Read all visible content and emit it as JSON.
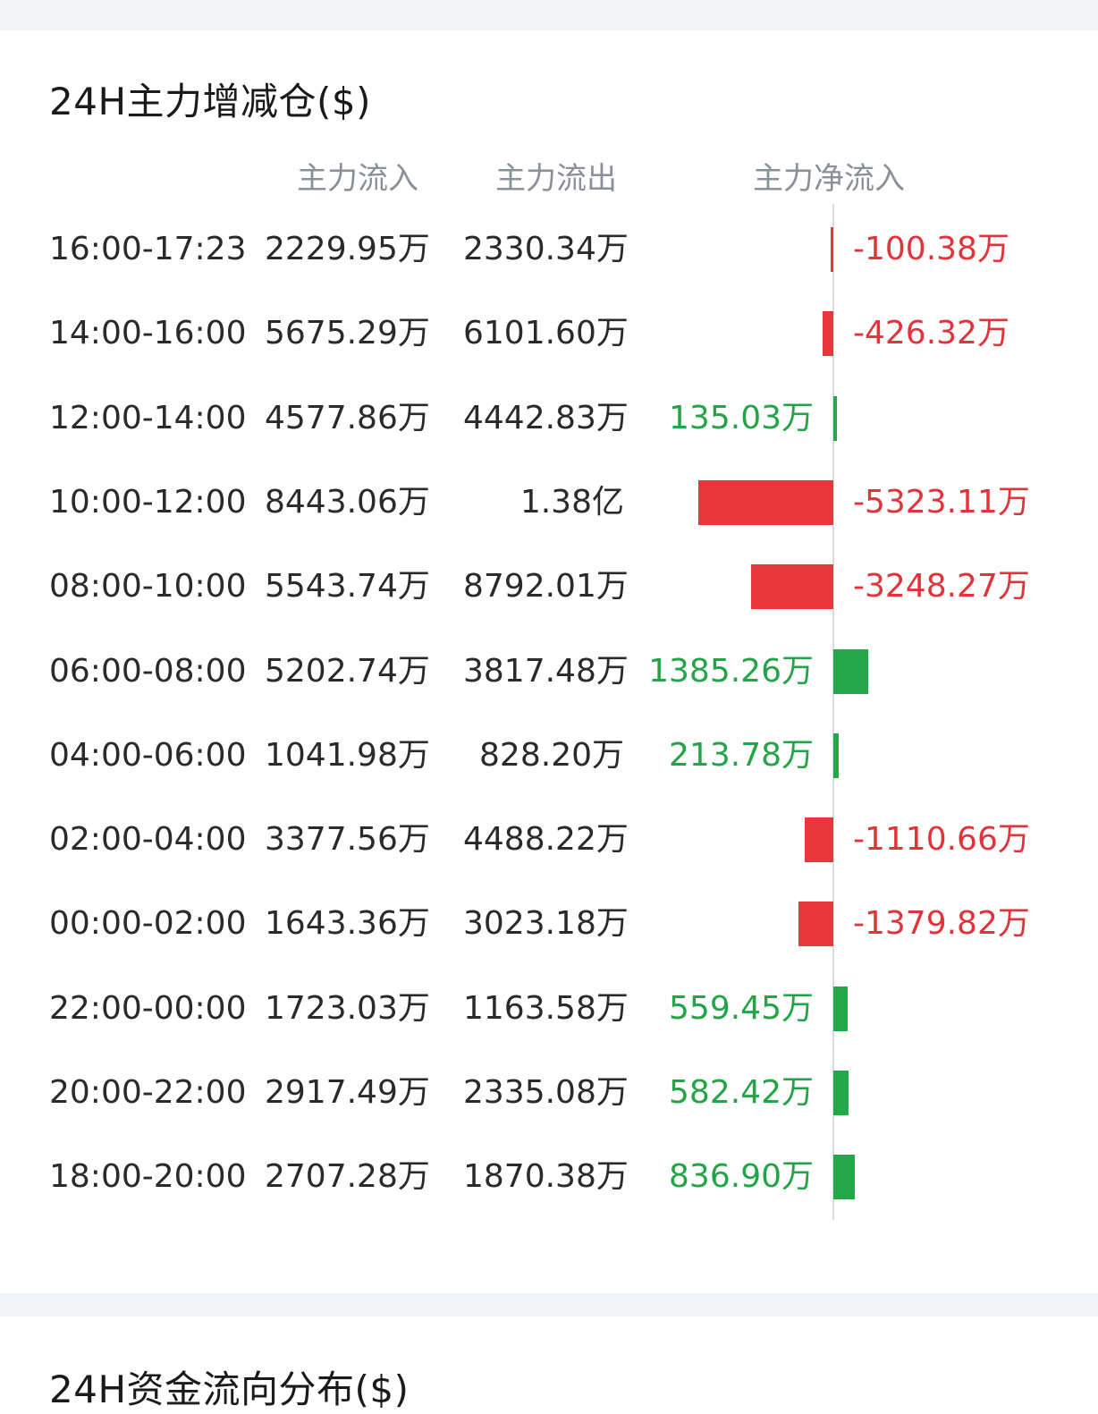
{
  "section1": {
    "title": "24H主力增减仓($)",
    "headers": {
      "inflow": "主力流入",
      "outflow": "主力流出",
      "net": "主力净流入"
    }
  },
  "rows": [
    {
      "time": "16:00-17:23",
      "inflow": "2229.95万",
      "outflow": "2330.34万",
      "net": "-100.38万",
      "net_value_wan": -100.38,
      "direction": "neg"
    },
    {
      "time": "14:00-16:00",
      "inflow": "5675.29万",
      "outflow": "6101.60万",
      "net": "-426.32万",
      "net_value_wan": -426.32,
      "direction": "neg"
    },
    {
      "time": "12:00-14:00",
      "inflow": "4577.86万",
      "outflow": "4442.83万",
      "net": "135.03万",
      "net_value_wan": 135.03,
      "direction": "pos"
    },
    {
      "time": "10:00-12:00",
      "inflow": "8443.06万",
      "outflow": "1.38亿",
      "net": "-5323.11万",
      "net_value_wan": -5323.11,
      "direction": "neg"
    },
    {
      "time": "08:00-10:00",
      "inflow": "5543.74万",
      "outflow": "8792.01万",
      "net": "-3248.27万",
      "net_value_wan": -3248.27,
      "direction": "neg"
    },
    {
      "time": "06:00-08:00",
      "inflow": "5202.74万",
      "outflow": "3817.48万",
      "net": "1385.26万",
      "net_value_wan": 1385.26,
      "direction": "pos"
    },
    {
      "time": "04:00-06:00",
      "inflow": "1041.98万",
      "outflow": "828.20万",
      "net": "213.78万",
      "net_value_wan": 213.78,
      "direction": "pos"
    },
    {
      "time": "02:00-04:00",
      "inflow": "3377.56万",
      "outflow": "4488.22万",
      "net": "-1110.66万",
      "net_value_wan": -1110.66,
      "direction": "neg"
    },
    {
      "time": "00:00-02:00",
      "inflow": "1643.36万",
      "outflow": "3023.18万",
      "net": "-1379.82万",
      "net_value_wan": -1379.82,
      "direction": "neg"
    },
    {
      "time": "22:00-00:00",
      "inflow": "1723.03万",
      "outflow": "1163.58万",
      "net": "559.45万",
      "net_value_wan": 559.45,
      "direction": "pos"
    },
    {
      "time": "20:00-22:00",
      "inflow": "2917.49万",
      "outflow": "2335.08万",
      "net": "582.42万",
      "net_value_wan": 582.42,
      "direction": "pos"
    },
    {
      "time": "18:00-20:00",
      "inflow": "2707.28万",
      "outflow": "1870.38万",
      "net": "836.90万",
      "net_value_wan": 836.9,
      "direction": "pos"
    }
  ],
  "section2": {
    "title": "24H资金流向分布($)"
  },
  "colors": {
    "positive": "#25a84a",
    "negative": "#e8363b",
    "positive_text": "#22a447",
    "negative_text": "#e0343a"
  }
}
